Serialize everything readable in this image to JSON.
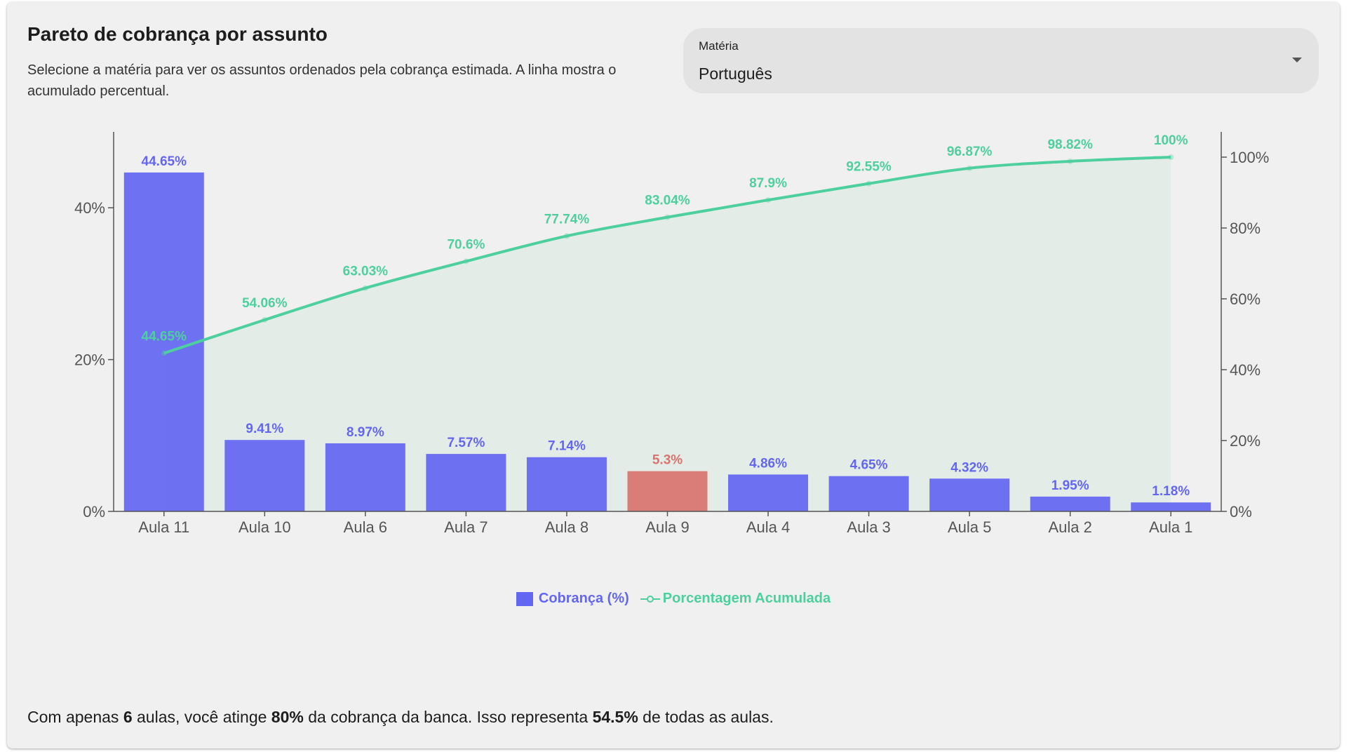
{
  "header": {
    "title": "Pareto de cobrança por assunto",
    "description": "Selecione a matéria para ver os assuntos ordenados pela cobrança estimada. A linha mostra o acumulado percentual."
  },
  "subject_select": {
    "label": "Matéria",
    "value": "Português"
  },
  "colors": {
    "bar": "#6366f1",
    "highlight_bar": "#d9736e",
    "line": "#4ecf9e",
    "area": "#e2ebe6"
  },
  "chart_data": {
    "type": "bar",
    "categories": [
      "Aula 11",
      "Aula 10",
      "Aula 6",
      "Aula 7",
      "Aula 8",
      "Aula 9",
      "Aula 4",
      "Aula 3",
      "Aula 5",
      "Aula 2",
      "Aula 1"
    ],
    "series": [
      {
        "name": "Cobrança (%)",
        "type": "bar",
        "axis": "left",
        "values": [
          44.65,
          9.41,
          8.97,
          7.57,
          7.14,
          5.3,
          4.86,
          4.65,
          4.32,
          1.95,
          1.18
        ],
        "labels": [
          "44.65%",
          "9.41%",
          "8.97%",
          "7.57%",
          "7.14%",
          "5.3%",
          "4.86%",
          "4.65%",
          "4.32%",
          "1.95%",
          "1.18%"
        ],
        "highlight_index": 5
      },
      {
        "name": "Porcentagem Acumulada",
        "type": "line",
        "axis": "right",
        "values": [
          44.65,
          54.06,
          63.03,
          70.6,
          77.74,
          83.04,
          87.9,
          92.55,
          96.87,
          98.82,
          100
        ],
        "labels": [
          "44.65%",
          "54.06%",
          "63.03%",
          "70.6%",
          "77.74%",
          "83.04%",
          "87.9%",
          "92.55%",
          "96.87%",
          "98.82%",
          "100%"
        ]
      }
    ],
    "y_left": {
      "ticks": [
        0,
        20,
        40
      ],
      "tick_labels": [
        "0%",
        "20%",
        "40%"
      ],
      "min": 0,
      "max": 50
    },
    "y_right": {
      "ticks": [
        0,
        20,
        40,
        60,
        80,
        100
      ],
      "tick_labels": [
        "0%",
        "20%",
        "40%",
        "60%",
        "80%",
        "100%"
      ],
      "min": 0,
      "max": 100
    },
    "grid": false,
    "legend_position": "bottom"
  },
  "footer": {
    "prefix": "Com apenas ",
    "lessons": "6",
    "mid1": " aulas, você atinge ",
    "coverage": "80%",
    "mid2": " da cobrança da banca. Isso representa ",
    "share": "54.5%",
    "suffix": " de todas as aulas."
  }
}
